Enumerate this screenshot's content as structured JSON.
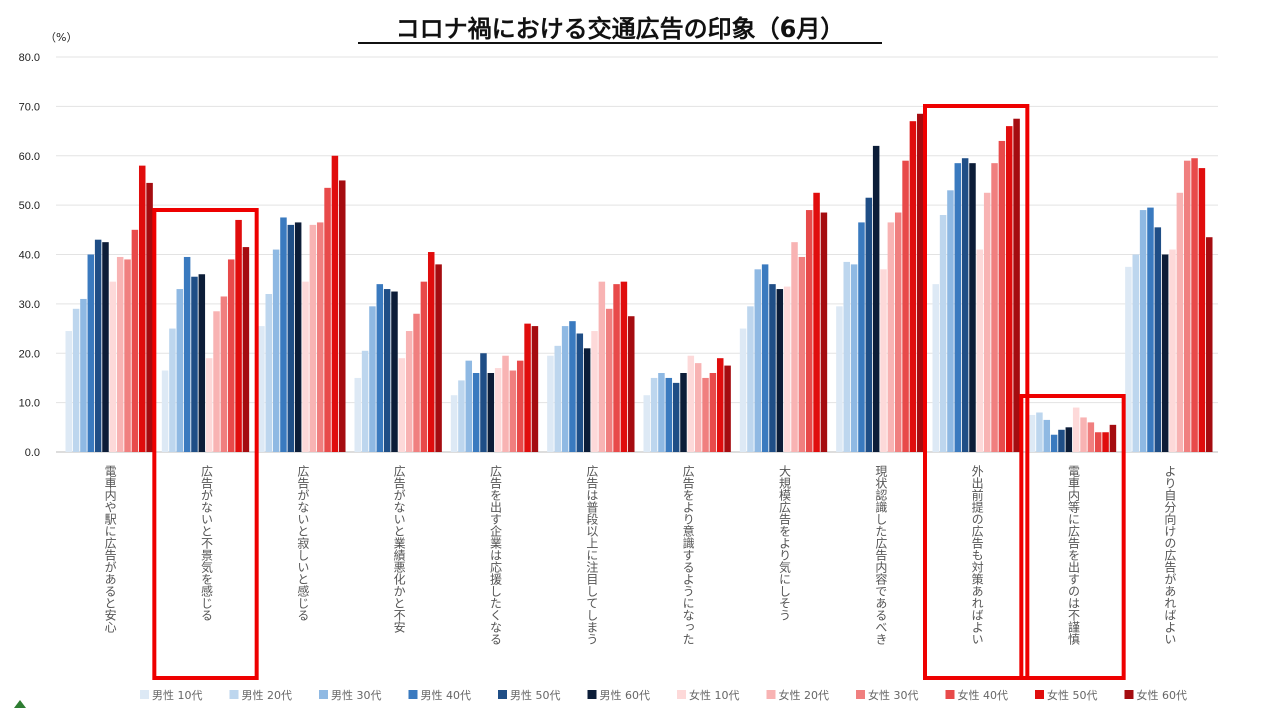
{
  "chart_data": {
    "type": "bar",
    "title": "コロナ禍における交通広告の印象（6月）",
    "yunit": "（%）",
    "ylim": [
      0,
      80
    ],
    "yticks": [
      "0.0",
      "10.0",
      "20.0",
      "30.0",
      "40.0",
      "50.0",
      "60.0",
      "70.0",
      "80.0"
    ],
    "grid": true,
    "legend_position": "bottom",
    "categories": [
      "電車内や駅に広告があると安心",
      "広告がないと不景気を感じる",
      "広告がないと寂しいと感じる",
      "広告がないと業績悪化かと不安",
      "広告を出す企業は応援したくなる",
      "広告は普段以上に注目してしまう",
      "広告をより意識するようになった",
      "大規模広告をより気にしそう",
      "現状認識した広告内容であるべき",
      "外出前提の広告も対策あればよい",
      "電車内等に広告を出すのは不謹慎",
      "より自分向けの広告があればよい"
    ],
    "highlighted_categories": [
      1,
      9,
      10
    ],
    "highlight_color": "#ee0000",
    "series": [
      {
        "name": "男性 10代",
        "color": "#dde9f5",
        "values": [
          24.5,
          16.5,
          25.5,
          15.0,
          11.5,
          19.5,
          11.5,
          25.0,
          29.5,
          34.0,
          7.5,
          37.5
        ]
      },
      {
        "name": "男性 20代",
        "color": "#bdd6ee",
        "values": [
          29.0,
          25.0,
          32.0,
          20.5,
          14.5,
          21.5,
          15.0,
          29.5,
          38.5,
          48.0,
          8.0,
          40.0
        ]
      },
      {
        "name": "男性 30代",
        "color": "#8fb9e3",
        "values": [
          31.0,
          33.0,
          41.0,
          29.5,
          18.5,
          25.5,
          16.0,
          37.0,
          38.0,
          53.0,
          6.5,
          49.0
        ]
      },
      {
        "name": "男性 40代",
        "color": "#3a7abf",
        "values": [
          40.0,
          39.5,
          47.5,
          34.0,
          16.0,
          26.5,
          15.0,
          38.0,
          46.5,
          58.5,
          3.5,
          49.5
        ]
      },
      {
        "name": "男性 50代",
        "color": "#1f4e86",
        "values": [
          43.0,
          35.5,
          46.0,
          33.0,
          20.0,
          24.0,
          14.0,
          34.0,
          51.5,
          59.5,
          4.5,
          45.5
        ]
      },
      {
        "name": "男性 60代",
        "color": "#0c1d38",
        "values": [
          42.5,
          36.0,
          46.5,
          32.5,
          16.0,
          21.0,
          16.0,
          33.0,
          62.0,
          58.5,
          5.0,
          40.0
        ]
      },
      {
        "name": "女性 10代",
        "color": "#fdd9d9",
        "values": [
          34.5,
          19.0,
          34.5,
          19.0,
          17.0,
          24.5,
          19.5,
          33.5,
          37.0,
          41.0,
          9.0,
          41.0
        ]
      },
      {
        "name": "女性 20代",
        "color": "#f8b3b3",
        "values": [
          39.5,
          28.5,
          46.0,
          24.5,
          19.5,
          34.5,
          18.0,
          42.5,
          46.5,
          52.5,
          7.0,
          52.5
        ]
      },
      {
        "name": "女性 30代",
        "color": "#f07f7f",
        "values": [
          39.0,
          31.5,
          46.5,
          28.0,
          16.5,
          29.0,
          15.0,
          39.5,
          48.5,
          58.5,
          6.0,
          59.0
        ]
      },
      {
        "name": "女性 40代",
        "color": "#e84a4a",
        "values": [
          45.0,
          39.0,
          53.5,
          34.5,
          18.5,
          34.0,
          16.0,
          49.0,
          59.0,
          63.0,
          4.0,
          59.5
        ]
      },
      {
        "name": "女性 50代",
        "color": "#e00d0d",
        "values": [
          58.0,
          47.0,
          60.0,
          40.5,
          26.0,
          34.5,
          19.0,
          52.5,
          67.0,
          66.0,
          4.0,
          57.5
        ]
      },
      {
        "name": "女性 60代",
        "color": "#a50c10",
        "values": [
          54.5,
          41.5,
          55.0,
          38.0,
          25.5,
          27.5,
          17.5,
          48.5,
          68.5,
          67.5,
          5.5,
          43.5
        ]
      }
    ]
  }
}
